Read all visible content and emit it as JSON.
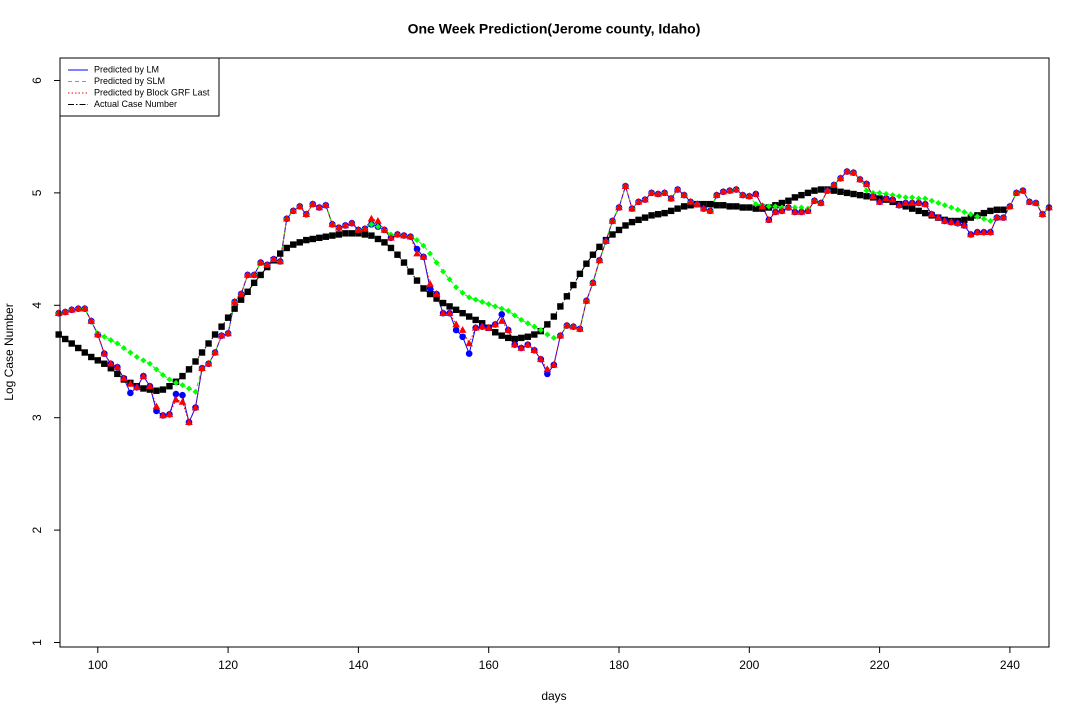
{
  "chart_data": {
    "type": "line",
    "title": "One Week Prediction(Jerome county, Idaho)",
    "x_label": "days",
    "y_label": "Log Case Number",
    "xlim": [
      94.2,
      246
    ],
    "ylim": [
      0.96,
      6.2
    ],
    "xticks": [
      100,
      120,
      140,
      160,
      180,
      200,
      220,
      240
    ],
    "yticks": [
      1,
      2,
      3,
      4,
      5,
      6
    ],
    "legend": "topleft",
    "x": [
      94,
      95,
      96,
      97,
      98,
      99,
      100,
      101,
      102,
      103,
      104,
      105,
      106,
      107,
      108,
      109,
      110,
      111,
      112,
      113,
      114,
      115,
      116,
      117,
      118,
      119,
      120,
      121,
      122,
      123,
      124,
      125,
      126,
      127,
      128,
      129,
      130,
      131,
      132,
      133,
      134,
      135,
      136,
      137,
      138,
      139,
      140,
      141,
      142,
      143,
      144,
      145,
      146,
      147,
      148,
      149,
      150,
      151,
      152,
      153,
      154,
      155,
      156,
      157,
      158,
      159,
      160,
      161,
      162,
      163,
      164,
      165,
      166,
      167,
      168,
      169,
      170,
      171,
      172,
      173,
      174,
      175,
      176,
      177,
      178,
      179,
      180,
      181,
      182,
      183,
      184,
      185,
      186,
      187,
      188,
      189,
      190,
      191,
      192,
      193,
      194,
      195,
      196,
      197,
      198,
      199,
      200,
      201,
      202,
      203,
      204,
      205,
      206,
      207,
      208,
      209,
      210,
      211,
      212,
      213,
      214,
      215,
      216,
      217,
      218,
      219,
      220,
      221,
      222,
      223,
      224,
      225,
      226,
      227,
      228,
      229,
      230,
      231,
      232,
      233,
      234,
      235,
      236,
      237,
      238,
      239,
      240,
      241,
      242,
      243,
      244,
      245,
      246
    ],
    "series": [
      {
        "name": "Predicted by LM",
        "color": "#0000ff",
        "dash": "solid",
        "marker": "circle",
        "values": [
          3.93,
          3.94,
          3.96,
          3.97,
          3.97,
          3.86,
          3.74,
          3.57,
          3.48,
          3.45,
          3.35,
          3.22,
          3.27,
          3.37,
          3.28,
          3.06,
          3.02,
          3.03,
          3.21,
          3.2,
          2.96,
          3.09,
          3.44,
          3.48,
          3.58,
          3.73,
          3.75,
          4.03,
          4.1,
          4.27,
          4.27,
          4.38,
          4.36,
          4.41,
          4.39,
          4.77,
          4.84,
          4.88,
          4.81,
          4.9,
          4.87,
          4.89,
          4.72,
          4.69,
          4.71,
          4.73,
          4.67,
          4.68,
          4.72,
          4.7,
          4.67,
          4.6,
          4.63,
          4.62,
          4.61,
          4.5,
          4.43,
          4.15,
          4.1,
          3.93,
          3.93,
          3.78,
          3.72,
          3.57,
          3.8,
          3.81,
          3.8,
          3.83,
          3.92,
          3.78,
          3.65,
          3.62,
          3.65,
          3.6,
          3.52,
          3.39,
          3.47,
          3.73,
          3.82,
          3.81,
          3.79,
          4.04,
          4.2,
          4.4,
          4.57,
          4.75,
          4.87,
          5.06,
          4.86,
          4.92,
          4.94,
          5,
          4.99,
          5,
          4.95,
          5.03,
          4.98,
          4.92,
          4.9,
          4.86,
          4.84,
          4.98,
          5.01,
          5.02,
          5.03,
          4.98,
          4.97,
          4.99,
          4.88,
          4.76,
          4.83,
          4.84,
          4.87,
          4.83,
          4.83,
          4.84,
          4.93,
          4.91,
          5.02,
          5.07,
          5.13,
          5.19,
          5.18,
          5.12,
          5.08,
          4.97,
          4.92,
          4.95,
          4.94,
          4.89,
          4.91,
          4.91,
          4.91,
          4.9,
          4.81,
          4.78,
          4.75,
          4.74,
          4.73,
          4.71,
          4.63,
          4.65,
          4.65,
          4.65,
          4.78,
          4.78,
          4.88,
          5,
          5.02,
          4.92,
          4.91,
          4.81,
          4.87
        ]
      },
      {
        "name": "Predicted by SLM",
        "color": "#00ff00",
        "dash": "dashed",
        "marker": "diamond",
        "values": [
          3.93,
          3.94,
          3.96,
          3.97,
          3.97,
          3.86,
          3.75,
          3.72,
          3.69,
          3.66,
          3.62,
          3.58,
          3.54,
          3.51,
          3.48,
          3.43,
          3.38,
          3.34,
          3.31,
          3.29,
          3.26,
          3.23,
          3.44,
          3.48,
          3.58,
          3.73,
          3.75,
          4.03,
          4.1,
          4.27,
          4.27,
          4.38,
          4.36,
          4.41,
          4.39,
          4.77,
          4.84,
          4.88,
          4.81,
          4.9,
          4.87,
          4.89,
          4.72,
          4.69,
          4.71,
          4.73,
          4.67,
          4.68,
          4.72,
          4.7,
          4.67,
          4.63,
          4.63,
          4.62,
          4.61,
          4.58,
          4.53,
          4.46,
          4.38,
          4.3,
          4.23,
          4.16,
          4.11,
          4.07,
          4.05,
          4.03,
          4.01,
          3.99,
          3.97,
          3.95,
          3.91,
          3.87,
          3.84,
          3.81,
          3.78,
          3.74,
          3.71,
          3.73,
          3.82,
          3.81,
          3.79,
          4.04,
          4.2,
          4.4,
          4.57,
          4.75,
          4.87,
          5.06,
          4.86,
          4.92,
          4.94,
          5,
          4.99,
          5,
          4.95,
          5.03,
          4.98,
          4.92,
          4.9,
          4.86,
          4.84,
          4.98,
          5.01,
          5.02,
          5.03,
          4.98,
          4.97,
          4.9,
          4.89,
          4.88,
          4.88,
          4.87,
          4.87,
          4.87,
          4.87,
          4.86,
          4.93,
          4.91,
          5.02,
          5.07,
          5.13,
          5.19,
          5.18,
          5.12,
          5.02,
          5,
          5,
          4.99,
          4.98,
          4.97,
          4.96,
          4.96,
          4.95,
          4.95,
          4.93,
          4.91,
          4.89,
          4.87,
          4.85,
          4.83,
          4.81,
          4.79,
          4.77,
          4.75,
          4.78,
          4.78,
          4.88,
          5,
          5.02,
          4.92,
          4.91,
          4.81,
          4.87
        ]
      },
      {
        "name": "Predicted by Block GRF Last",
        "color": "#ff0000",
        "dash": "dotted",
        "marker": "triangle",
        "values": [
          3.93,
          3.94,
          3.96,
          3.97,
          3.97,
          3.86,
          3.74,
          3.57,
          3.48,
          3.45,
          3.35,
          3.3,
          3.27,
          3.37,
          3.28,
          3.1,
          3.02,
          3.03,
          3.16,
          3.14,
          2.96,
          3.09,
          3.44,
          3.48,
          3.58,
          3.73,
          3.75,
          4.03,
          4.1,
          4.27,
          4.27,
          4.38,
          4.36,
          4.41,
          4.39,
          4.77,
          4.84,
          4.88,
          4.81,
          4.9,
          4.87,
          4.89,
          4.72,
          4.69,
          4.71,
          4.73,
          4.67,
          4.68,
          4.77,
          4.75,
          4.67,
          4.6,
          4.63,
          4.62,
          4.61,
          4.46,
          4.43,
          4.19,
          4.1,
          3.93,
          3.93,
          3.83,
          3.78,
          3.66,
          3.8,
          3.81,
          3.8,
          3.83,
          3.86,
          3.78,
          3.65,
          3.62,
          3.65,
          3.6,
          3.52,
          3.43,
          3.47,
          3.73,
          3.82,
          3.81,
          3.79,
          4.04,
          4.2,
          4.4,
          4.57,
          4.75,
          4.87,
          5.06,
          4.86,
          4.92,
          4.94,
          5,
          4.99,
          5,
          4.95,
          5.03,
          4.98,
          4.92,
          4.9,
          4.86,
          4.84,
          4.98,
          5.01,
          5.02,
          5.03,
          4.98,
          4.97,
          4.99,
          4.88,
          4.76,
          4.83,
          4.84,
          4.87,
          4.83,
          4.83,
          4.84,
          4.93,
          4.91,
          5.02,
          5.07,
          5.13,
          5.19,
          5.18,
          5.12,
          5.08,
          4.97,
          4.92,
          4.95,
          4.94,
          4.89,
          4.91,
          4.91,
          4.91,
          4.9,
          4.81,
          4.78,
          4.75,
          4.74,
          4.73,
          4.71,
          4.63,
          4.65,
          4.65,
          4.65,
          4.78,
          4.78,
          4.88,
          5,
          5.02,
          4.92,
          4.91,
          4.81,
          4.87
        ]
      },
      {
        "name": "Actual Case Number",
        "color": "#000000",
        "dash": "dashdot",
        "marker": "square",
        "values": [
          3.74,
          3.7,
          3.66,
          3.62,
          3.58,
          3.54,
          3.51,
          3.48,
          3.44,
          3.39,
          3.34,
          3.31,
          3.28,
          3.26,
          3.25,
          3.24,
          3.25,
          3.28,
          3.32,
          3.37,
          3.43,
          3.5,
          3.58,
          3.66,
          3.74,
          3.81,
          3.89,
          3.97,
          4.05,
          4.12,
          4.2,
          4.27,
          4.34,
          4.4,
          4.46,
          4.51,
          4.54,
          4.56,
          4.58,
          4.59,
          4.6,
          4.61,
          4.62,
          4.63,
          4.64,
          4.64,
          4.64,
          4.63,
          4.62,
          4.59,
          4.56,
          4.51,
          4.45,
          4.38,
          4.3,
          4.22,
          4.15,
          4.1,
          4.06,
          4.02,
          3.99,
          3.96,
          3.93,
          3.9,
          3.87,
          3.84,
          3.8,
          3.76,
          3.73,
          3.71,
          3.7,
          3.71,
          3.72,
          3.74,
          3.77,
          3.83,
          3.9,
          3.99,
          4.08,
          4.18,
          4.28,
          4.37,
          4.45,
          4.52,
          4.58,
          4.63,
          4.67,
          4.71,
          4.74,
          4.76,
          4.78,
          4.8,
          4.81,
          4.82,
          4.84,
          4.86,
          4.88,
          4.89,
          4.9,
          4.9,
          4.9,
          4.89,
          4.89,
          4.88,
          4.88,
          4.87,
          4.87,
          4.86,
          4.86,
          4.87,
          4.89,
          4.91,
          4.93,
          4.96,
          4.98,
          5,
          5.02,
          5.03,
          5.03,
          5.02,
          5.01,
          5,
          4.99,
          4.98,
          4.97,
          4.96,
          4.95,
          4.94,
          4.92,
          4.9,
          4.88,
          4.86,
          4.84,
          4.82,
          4.8,
          4.78,
          4.76,
          4.75,
          4.75,
          4.76,
          4.78,
          4.8,
          4.82,
          4.84,
          4.85,
          4.85,
          null,
          null,
          null,
          null,
          null,
          null,
          null
        ]
      }
    ]
  }
}
